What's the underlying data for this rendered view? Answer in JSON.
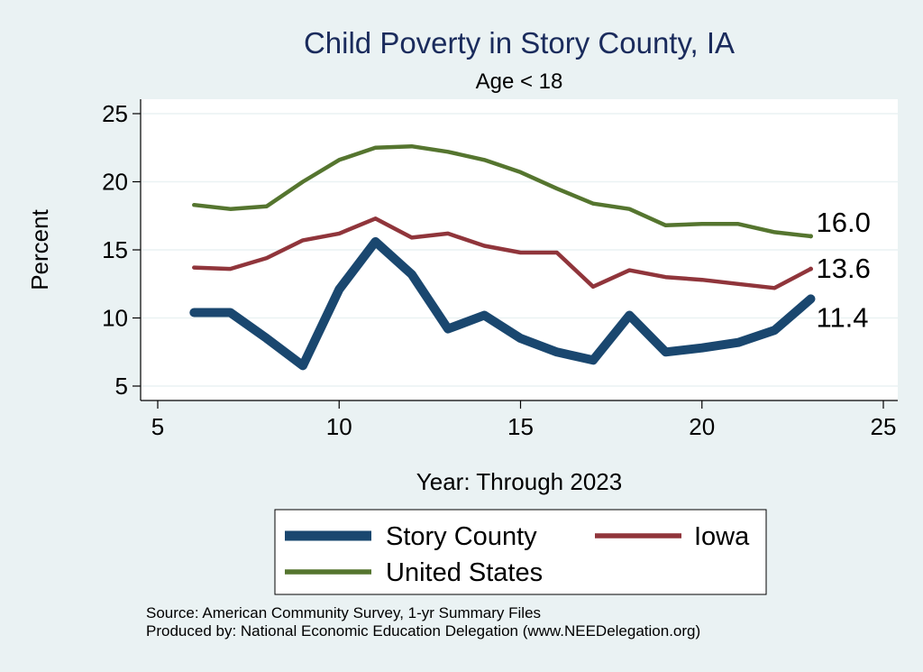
{
  "chart_data": {
    "type": "line",
    "title": "Child Poverty in Story County, IA",
    "subtitle": "Age < 18",
    "xlabel": "Year: Through 2023",
    "ylabel": "Percent",
    "xlim": [
      5,
      25
    ],
    "ylim": [
      5,
      25
    ],
    "xticks": [
      "5",
      "10",
      "15",
      "20",
      "25"
    ],
    "yticks": [
      "5",
      "10",
      "15",
      "20",
      "25"
    ],
    "grid": true,
    "legend_position": "bottom",
    "series": [
      {
        "name": "Story County",
        "color": "#1a476f",
        "x": [
          6,
          7,
          8,
          9,
          10,
          11,
          12,
          13,
          14,
          15,
          16,
          17,
          18,
          19,
          20,
          21,
          22,
          23
        ],
        "y": [
          10.4,
          10.4,
          8.5,
          6.5,
          12.1,
          15.6,
          13.2,
          9.2,
          10.2,
          8.5,
          7.5,
          6.9,
          10.2,
          7.5,
          7.8,
          8.2,
          9.1,
          11.4
        ],
        "end_label": "11.4"
      },
      {
        "name": "Iowa",
        "color": "#90353b",
        "x": [
          6,
          7,
          8,
          9,
          10,
          11,
          12,
          13,
          14,
          15,
          16,
          17,
          18,
          19,
          20,
          21,
          22,
          23
        ],
        "y": [
          13.7,
          13.6,
          14.4,
          15.7,
          16.2,
          17.3,
          15.9,
          16.2,
          15.3,
          14.8,
          14.8,
          12.3,
          13.5,
          13.0,
          12.8,
          12.5,
          12.2,
          13.6
        ],
        "end_label": "13.6"
      },
      {
        "name": "United States",
        "color": "#55752f",
        "x": [
          6,
          7,
          8,
          9,
          10,
          11,
          12,
          13,
          14,
          15,
          16,
          17,
          18,
          19,
          20,
          21,
          22,
          23
        ],
        "y": [
          18.3,
          18.0,
          18.2,
          20.0,
          21.6,
          22.5,
          22.6,
          22.2,
          21.6,
          20.7,
          19.5,
          18.4,
          18.0,
          16.8,
          16.9,
          16.9,
          16.3,
          16.0
        ],
        "end_label": "16.0"
      }
    ],
    "notes": [
      "Source: American Community Survey, 1-yr Summary Files",
      "Produced by: National Economic Education Delegation (www.NEEDelegation.org)"
    ]
  }
}
